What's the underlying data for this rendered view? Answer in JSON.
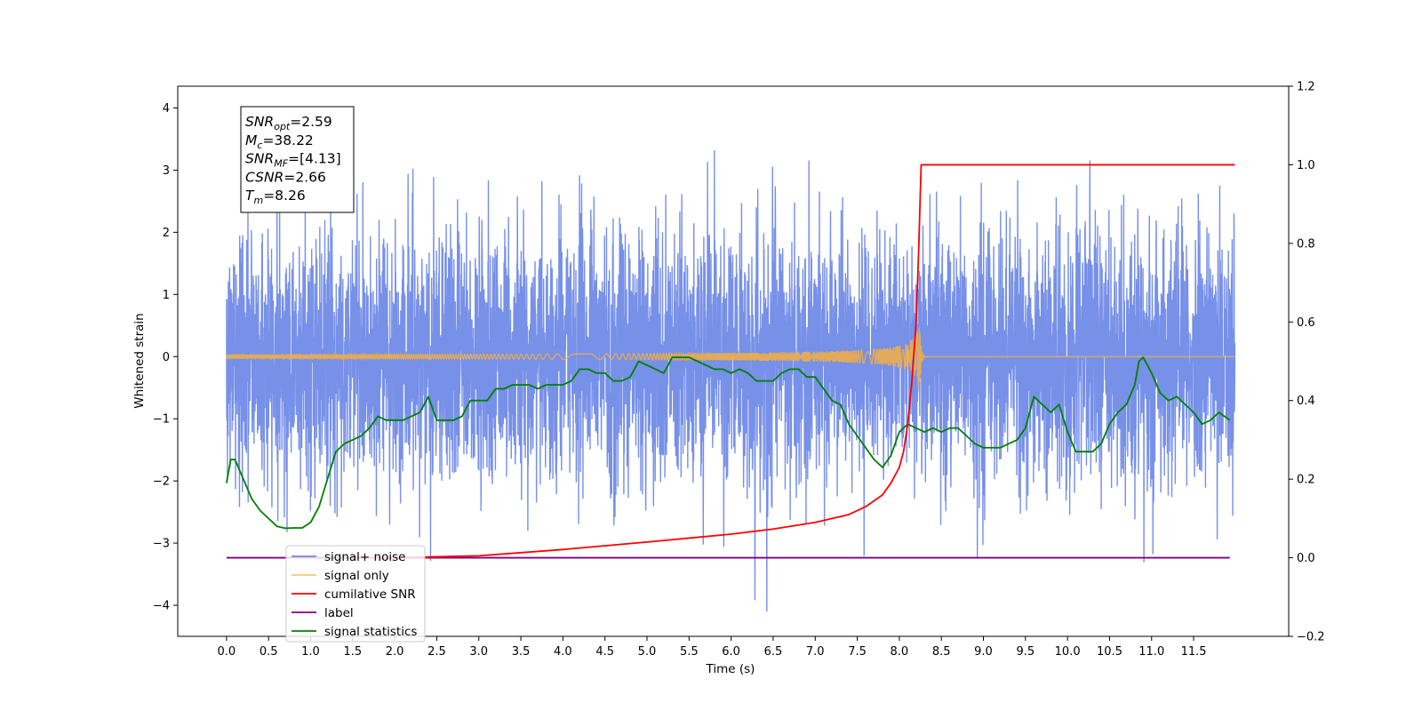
{
  "chart_data": {
    "type": "line",
    "xlabel": "Time (s)",
    "ylabel": "Whitened strain",
    "x_ticks": [
      0.0,
      0.5,
      1.0,
      1.5,
      2.0,
      2.5,
      3.0,
      3.5,
      4.0,
      4.5,
      5.0,
      5.5,
      6.0,
      6.5,
      7.0,
      7.5,
      8.0,
      8.5,
      9.0,
      9.5,
      10.0,
      10.5,
      11.0,
      11.5
    ],
    "x_tick_labels": [
      "0.0",
      "0.5",
      "1.0",
      "1.5",
      "2.0",
      "2.5",
      "3.0",
      "3.5",
      "4.0",
      "4.5",
      "5.0",
      "5.5",
      "6.0",
      "6.5",
      "7.0",
      "7.5",
      "8.0",
      "8.5",
      "9.0",
      "9.5",
      "10.0",
      "10.5",
      "11.0",
      "11.5"
    ],
    "xlim": [
      -0.58,
      12.63
    ],
    "ylim_left": [
      -4.5,
      4.35
    ],
    "y_ticks_left": [
      -4,
      -3,
      -2,
      -1,
      0,
      1,
      2,
      3,
      4
    ],
    "ylim_right": [
      -0.2,
      1.2
    ],
    "y_ticks_right": [
      -0.2,
      0.0,
      0.2,
      0.4,
      0.6,
      0.8,
      1.0,
      1.2
    ],
    "y_tick_labels_right": [
      "−0.2",
      "0.0",
      "0.2",
      "0.4",
      "0.6",
      "0.8",
      "1.0",
      "1.2"
    ],
    "grid": false,
    "legend_position": "lower-left",
    "annotation": {
      "lines": [
        {
          "sym": "SNR",
          "sub": "opt",
          "text": "=2.59"
        },
        {
          "sym": "M",
          "sub": "c",
          "text": "=38.22"
        },
        {
          "sym": "SNR",
          "sub": "MF",
          "text": "=[4.13]"
        },
        {
          "sym": "CSNR",
          "sub": "",
          "text": "=2.66"
        },
        {
          "sym": "T",
          "sub": "m",
          "text": "=8.26"
        }
      ]
    },
    "series": [
      {
        "name": "signal+ noise",
        "color": "#6b87e6",
        "axis": "left",
        "description": "whitened noise, approx N(0,1), t from 0 to 11.99 s",
        "t_range": [
          0.0,
          11.99
        ],
        "y_range": [
          -4.1,
          3.95
        ]
      },
      {
        "name": "signal only",
        "color": "#f5b041",
        "axis": "left",
        "chirp_peak_time": 8.24,
        "chirp_peak_amplitude": 0.65
      },
      {
        "name": "cumilative SNR",
        "color": "#ff0000",
        "axis": "right",
        "x": [
          1.5,
          2.0,
          3.0,
          4.0,
          5.0,
          6.0,
          6.5,
          7.0,
          7.4,
          7.6,
          7.8,
          7.9,
          8.0,
          8.05,
          8.1,
          8.15,
          8.2,
          8.23,
          8.25,
          8.26,
          11.99
        ],
        "y": [
          0.0,
          0.0,
          0.005,
          0.021,
          0.04,
          0.06,
          0.073,
          0.09,
          0.11,
          0.13,
          0.16,
          0.19,
          0.23,
          0.27,
          0.34,
          0.45,
          0.6,
          0.78,
          0.93,
          1.0,
          1.0
        ]
      },
      {
        "name": "label",
        "color": "#800080",
        "axis": "right",
        "x": [
          0.0,
          11.93
        ],
        "y": [
          0.0,
          0.0
        ]
      },
      {
        "name": "signal statistics",
        "color": "#008000",
        "axis": "right",
        "x": [
          0.0,
          0.05,
          0.1,
          0.2,
          0.3,
          0.4,
          0.5,
          0.6,
          0.7,
          0.8,
          0.9,
          1.0,
          1.1,
          1.2,
          1.3,
          1.4,
          1.5,
          1.6,
          1.7,
          1.8,
          1.9,
          2.0,
          2.1,
          2.2,
          2.3,
          2.4,
          2.5,
          2.6,
          2.7,
          2.8,
          2.9,
          3.0,
          3.1,
          3.2,
          3.3,
          3.4,
          3.5,
          3.6,
          3.7,
          3.8,
          3.9,
          4.0,
          4.1,
          4.2,
          4.3,
          4.4,
          4.5,
          4.6,
          4.7,
          4.8,
          4.9,
          5.0,
          5.1,
          5.2,
          5.3,
          5.4,
          5.5,
          5.6,
          5.7,
          5.8,
          5.9,
          6.0,
          6.1,
          6.2,
          6.3,
          6.4,
          6.5,
          6.6,
          6.7,
          6.8,
          6.9,
          7.0,
          7.1,
          7.2,
          7.3,
          7.4,
          7.5,
          7.6,
          7.7,
          7.8,
          7.9,
          8.0,
          8.1,
          8.2,
          8.3,
          8.4,
          8.5,
          8.6,
          8.7,
          8.8,
          8.9,
          9.0,
          9.1,
          9.2,
          9.3,
          9.4,
          9.5,
          9.6,
          9.7,
          9.8,
          9.9,
          10.0,
          10.1,
          10.2,
          10.3,
          10.4,
          10.5,
          10.6,
          10.7,
          10.8,
          10.85,
          10.9,
          11.0,
          11.1,
          11.2,
          11.3,
          11.4,
          11.5,
          11.6,
          11.7,
          11.8,
          11.93
        ],
        "y": [
          0.19,
          0.25,
          0.25,
          0.2,
          0.15,
          0.12,
          0.1,
          0.08,
          0.075,
          0.076,
          0.076,
          0.09,
          0.13,
          0.2,
          0.27,
          0.29,
          0.3,
          0.31,
          0.33,
          0.36,
          0.35,
          0.35,
          0.35,
          0.36,
          0.37,
          0.41,
          0.35,
          0.35,
          0.35,
          0.36,
          0.4,
          0.4,
          0.4,
          0.43,
          0.43,
          0.44,
          0.44,
          0.44,
          0.43,
          0.44,
          0.44,
          0.44,
          0.45,
          0.48,
          0.48,
          0.47,
          0.47,
          0.45,
          0.45,
          0.46,
          0.5,
          0.49,
          0.48,
          0.47,
          0.51,
          0.51,
          0.51,
          0.5,
          0.49,
          0.48,
          0.48,
          0.47,
          0.48,
          0.47,
          0.45,
          0.45,
          0.45,
          0.47,
          0.48,
          0.48,
          0.46,
          0.46,
          0.43,
          0.4,
          0.39,
          0.34,
          0.31,
          0.28,
          0.25,
          0.23,
          0.26,
          0.32,
          0.34,
          0.33,
          0.32,
          0.33,
          0.32,
          0.33,
          0.33,
          0.31,
          0.29,
          0.28,
          0.28,
          0.28,
          0.29,
          0.3,
          0.33,
          0.41,
          0.39,
          0.37,
          0.39,
          0.32,
          0.27,
          0.27,
          0.27,
          0.29,
          0.34,
          0.37,
          0.39,
          0.44,
          0.5,
          0.51,
          0.47,
          0.42,
          0.4,
          0.41,
          0.39,
          0.37,
          0.34,
          0.35,
          0.37,
          0.35
        ]
      }
    ]
  }
}
